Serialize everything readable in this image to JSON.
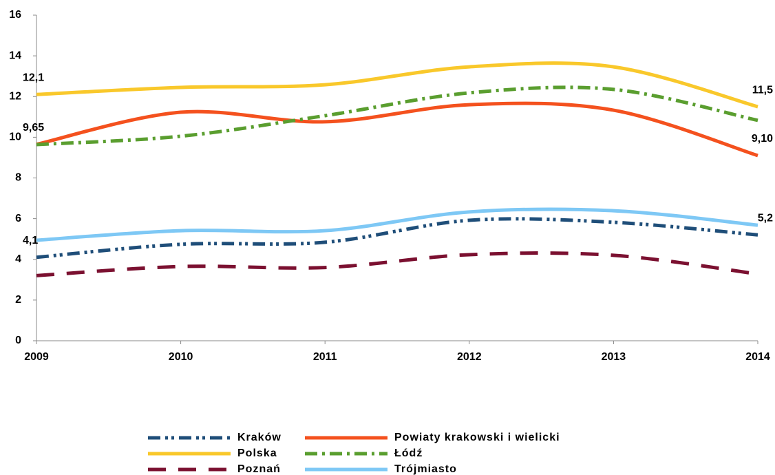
{
  "chart_data": {
    "type": "line",
    "categories": [
      "2009",
      "2010",
      "2011",
      "2012",
      "2013",
      "2014"
    ],
    "ylim": [
      0,
      16
    ],
    "yticks": [
      0,
      2,
      4,
      6,
      8,
      10,
      12,
      14,
      16
    ],
    "grid": false,
    "smooth": true,
    "legend": "bottom",
    "series": [
      {
        "name": "Kraków",
        "color": "#1f4e79",
        "dash": "18 7 4 5 4 7",
        "values": [
          4.1,
          4.74,
          4.84,
          5.92,
          5.82,
          5.2
        ],
        "value_labels": [
          "4,1",
          null,
          null,
          null,
          null,
          "5,2"
        ]
      },
      {
        "name": "Powiaty krakowski i wielicki",
        "color": "#f4511e",
        "dash": "none",
        "values": [
          9.65,
          11.23,
          10.76,
          11.6,
          11.33,
          9.1
        ],
        "value_labels": [
          "9,65",
          null,
          null,
          null,
          null,
          "9,10"
        ]
      },
      {
        "name": "Polska",
        "color": "#f9c82b",
        "dash": "none",
        "values": [
          12.1,
          12.45,
          12.58,
          13.46,
          13.46,
          11.5
        ],
        "value_labels": [
          "12,1",
          null,
          null,
          null,
          null,
          "11,5"
        ]
      },
      {
        "name": "Łódź",
        "color": "#5a9e2f",
        "dash": "18 7 4 7",
        "values": [
          9.64,
          10.05,
          11.06,
          12.18,
          12.35,
          10.83
        ]
      },
      {
        "name": "Poznań",
        "color": "#7b1030",
        "dash": "26 18",
        "values": [
          3.2,
          3.65,
          3.6,
          4.23,
          4.2,
          3.28
        ]
      },
      {
        "name": "Trójmiasto",
        "color": "#7ec8f5",
        "dash": "none",
        "values": [
          4.94,
          5.41,
          5.41,
          6.33,
          6.39,
          5.68
        ]
      }
    ]
  }
}
